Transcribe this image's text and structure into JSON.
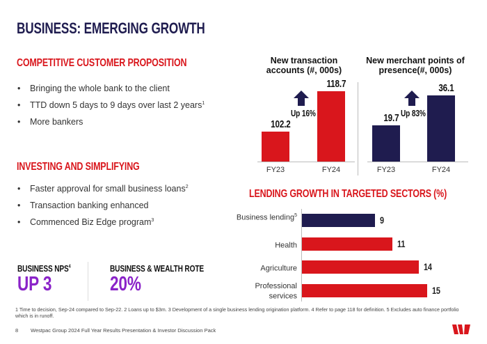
{
  "title": "BUSINESS: EMERGING GROWTH",
  "section1": {
    "heading": "COMPETITIVE CUSTOMER PROPOSITION",
    "bullets": [
      {
        "text": "Bringing the whole bank to the client",
        "sup": ""
      },
      {
        "text": "TTD down 5 days to 9 days over last 2 years",
        "sup": "1"
      },
      {
        "text": "More bankers",
        "sup": ""
      }
    ]
  },
  "section2": {
    "heading": "INVESTING AND SIMPLIFYING",
    "bullets": [
      {
        "text": "Faster approval for small business loans",
        "sup": "2"
      },
      {
        "text": "Transaction banking enhanced",
        "sup": ""
      },
      {
        "text": "Commenced Biz Edge program",
        "sup": "3"
      }
    ]
  },
  "kpis": [
    {
      "label": "BUSINESS NPS",
      "sup": "4",
      "value": "UP 3"
    },
    {
      "label": "BUSINESS & WEALTH ROTE",
      "sup": "",
      "value": "20%"
    }
  ],
  "chart_data": [
    {
      "type": "bar",
      "title": "New transaction accounts (#, 000s)",
      "categories": [
        "FY23",
        "FY24"
      ],
      "values": [
        102.2,
        118.7
      ],
      "annotation": "Up 16%",
      "color": "#d9161c",
      "axis": "truncated"
    },
    {
      "type": "bar",
      "title": "New merchant points of presence(#, 000s)",
      "categories": [
        "FY23",
        "FY24"
      ],
      "values": [
        19.7,
        36.1
      ],
      "annotation": "Up 83%",
      "color": "#1f1c4f"
    },
    {
      "type": "bar",
      "orientation": "horizontal",
      "title": "LENDING GROWTH IN TARGETED SECTORS (%)",
      "categories": [
        {
          "label": "Business lending",
          "sup": "5"
        },
        {
          "label": "Health",
          "sup": ""
        },
        {
          "label": "Agriculture",
          "sup": ""
        },
        {
          "label": "Professional services",
          "sup": ""
        }
      ],
      "values": [
        9,
        11,
        14,
        15
      ],
      "colors": [
        "#1f1c4f",
        "#d9161c",
        "#d9161c",
        "#d9161c"
      ]
    }
  ],
  "footnote": "1 Time to decision, Sep-24 compared to Sep-22. 2 Loans up to $3m. 3 Development of a single business lending origination platform. 4 Refer to page 118 for definition. 5 Excludes auto finance portfolio which is in runoff.",
  "footer": {
    "page": "8",
    "text": "Westpac Group 2024 Full Year Results Presentation & Investor Discussion Pack",
    "logo": "W"
  }
}
